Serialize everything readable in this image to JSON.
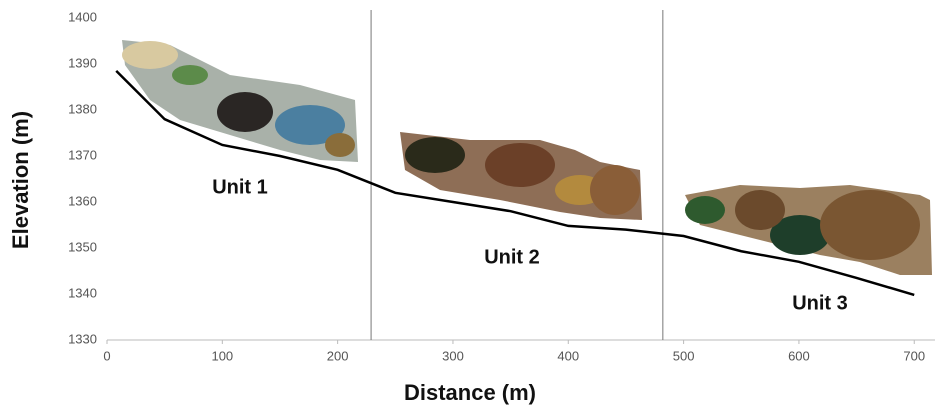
{
  "chart_data": {
    "type": "line",
    "xlabel": "Distance (m)",
    "ylabel": "Elevation (m)",
    "x": [
      8,
      50,
      100,
      150,
      200,
      250,
      300,
      350,
      400,
      450,
      500,
      550,
      600,
      650,
      700
    ],
    "values": [
      1388.5,
      1378,
      1372.4,
      1370,
      1367,
      1362,
      1360,
      1358,
      1354.8,
      1354,
      1352.6,
      1349.3,
      1347,
      1343.5,
      1339.8
    ],
    "color": "#000000",
    "xlim": [
      0,
      718
    ],
    "xticks": [
      0,
      100,
      200,
      300,
      400,
      500,
      600,
      700
    ],
    "ylim": [
      1330,
      1400
    ],
    "yticks": [
      1330,
      1340,
      1350,
      1360,
      1370,
      1380,
      1390,
      1400
    ],
    "vlines": [
      229,
      482
    ],
    "annotations": [
      {
        "text": "Unit 1"
      },
      {
        "text": "Unit 2"
      },
      {
        "text": "Unit 3"
      }
    ]
  }
}
